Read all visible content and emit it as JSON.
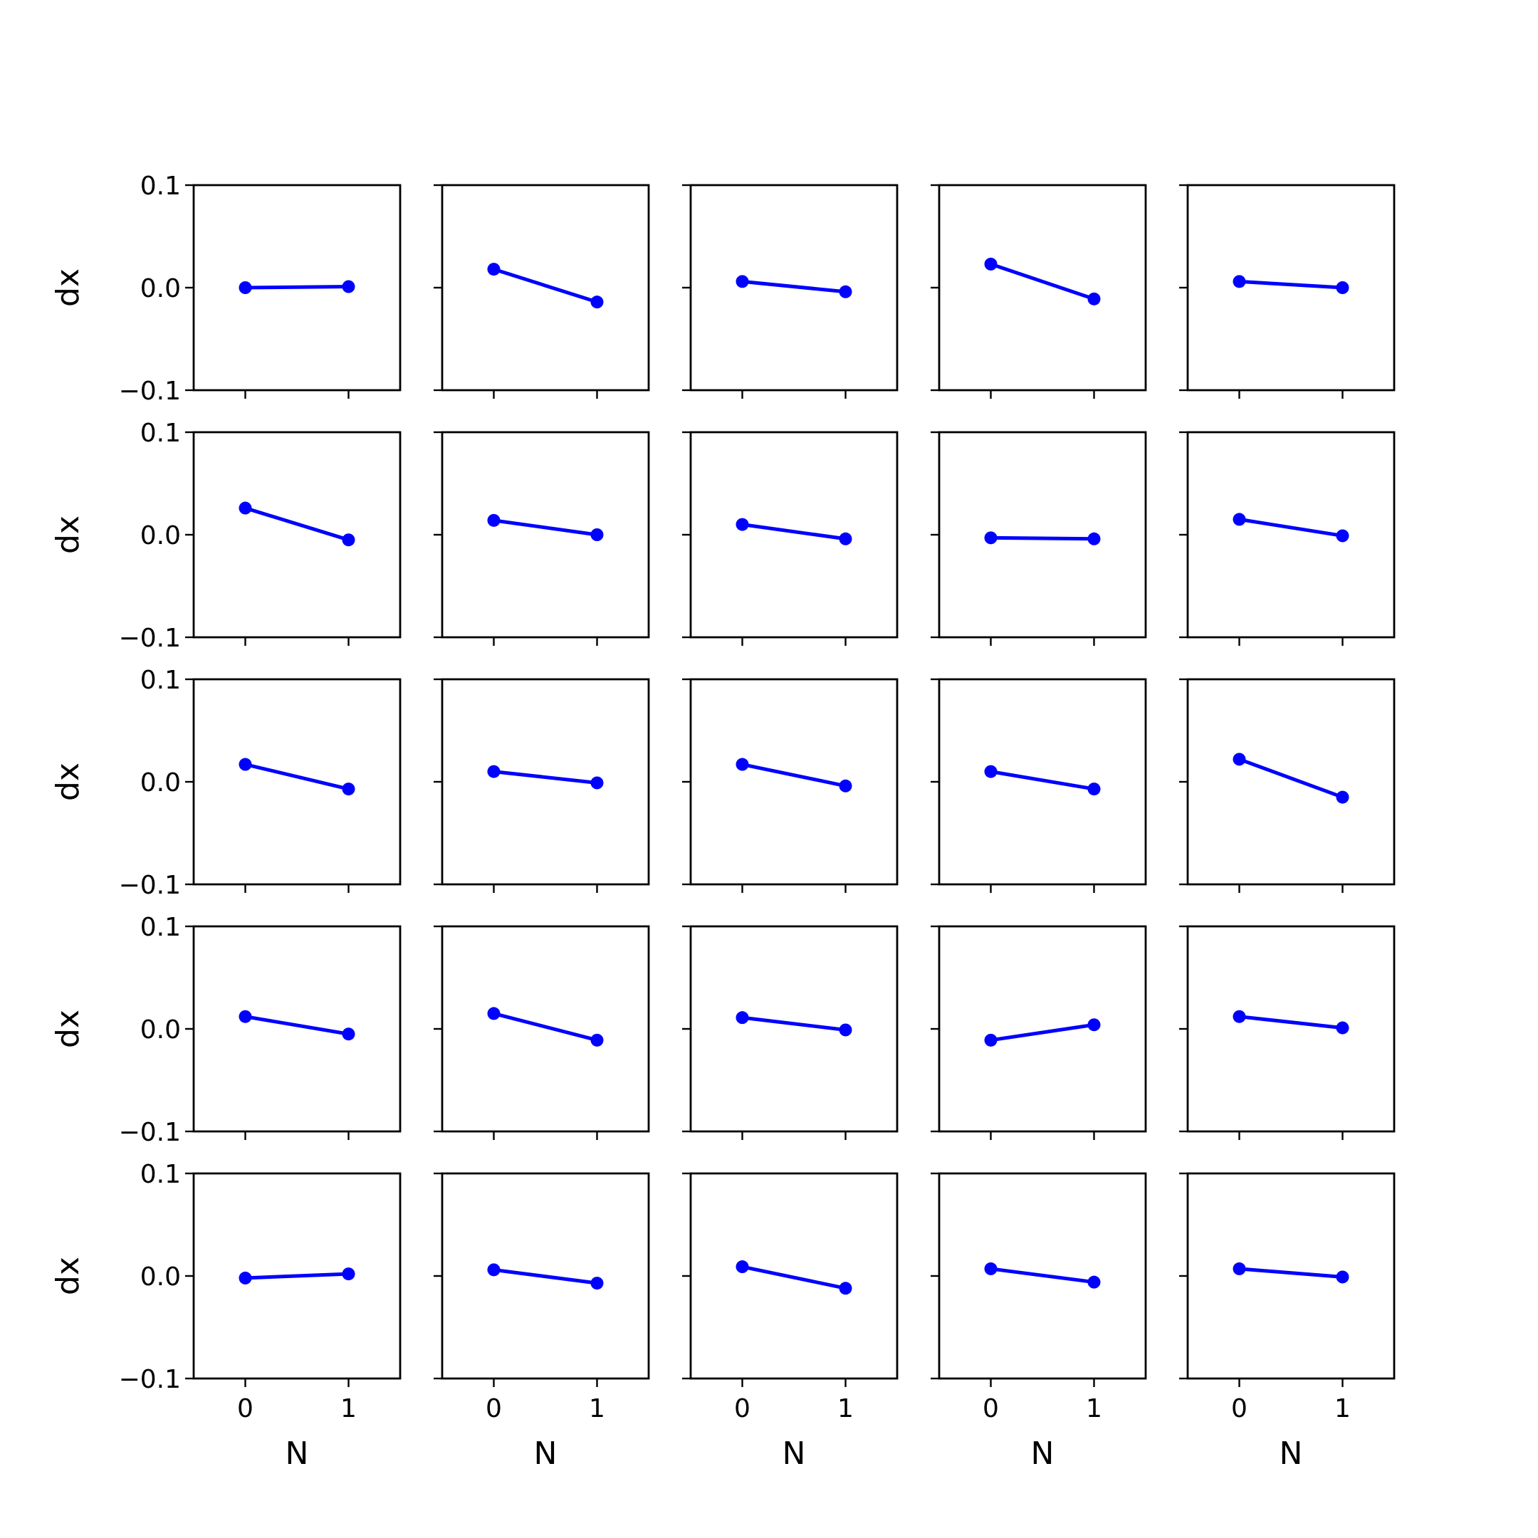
{
  "chart_data": {
    "type": "line",
    "layout": {
      "rows": 5,
      "cols": 5
    },
    "color": "#0000ff",
    "ylabel": "dx",
    "xlabel": "N",
    "xticks": [
      0,
      1
    ],
    "yticks": [
      -0.1,
      0.0,
      0.1
    ],
    "ytick_labels": [
      "−0.1",
      "0.0",
      "0.1"
    ],
    "xlim": [
      -0.5,
      1.5
    ],
    "ylim": [
      -0.1,
      0.1
    ],
    "shared_x": true,
    "shared_y": true,
    "panels": [
      {
        "x": [
          0,
          1
        ],
        "y": [
          0.0,
          0.001
        ]
      },
      {
        "x": [
          0,
          1
        ],
        "y": [
          0.018,
          -0.014
        ]
      },
      {
        "x": [
          0,
          1
        ],
        "y": [
          0.006,
          -0.004
        ]
      },
      {
        "x": [
          0,
          1
        ],
        "y": [
          0.023,
          -0.011
        ]
      },
      {
        "x": [
          0,
          1
        ],
        "y": [
          0.006,
          0.0
        ]
      },
      {
        "x": [
          0,
          1
        ],
        "y": [
          0.026,
          -0.005
        ]
      },
      {
        "x": [
          0,
          1
        ],
        "y": [
          0.014,
          0.0
        ]
      },
      {
        "x": [
          0,
          1
        ],
        "y": [
          0.01,
          -0.004
        ]
      },
      {
        "x": [
          0,
          1
        ],
        "y": [
          -0.003,
          -0.004
        ]
      },
      {
        "x": [
          0,
          1
        ],
        "y": [
          0.015,
          -0.001
        ]
      },
      {
        "x": [
          0,
          1
        ],
        "y": [
          0.017,
          -0.007
        ]
      },
      {
        "x": [
          0,
          1
        ],
        "y": [
          0.01,
          -0.001
        ]
      },
      {
        "x": [
          0,
          1
        ],
        "y": [
          0.017,
          -0.004
        ]
      },
      {
        "x": [
          0,
          1
        ],
        "y": [
          0.01,
          -0.007
        ]
      },
      {
        "x": [
          0,
          1
        ],
        "y": [
          0.022,
          -0.015
        ]
      },
      {
        "x": [
          0,
          1
        ],
        "y": [
          0.012,
          -0.005
        ]
      },
      {
        "x": [
          0,
          1
        ],
        "y": [
          0.015,
          -0.011
        ]
      },
      {
        "x": [
          0,
          1
        ],
        "y": [
          0.011,
          -0.001
        ]
      },
      {
        "x": [
          0,
          1
        ],
        "y": [
          -0.011,
          0.004
        ]
      },
      {
        "x": [
          0,
          1
        ],
        "y": [
          0.012,
          0.001
        ]
      },
      {
        "x": [
          0,
          1
        ],
        "y": [
          -0.002,
          0.002
        ]
      },
      {
        "x": [
          0,
          1
        ],
        "y": [
          0.006,
          -0.007
        ]
      },
      {
        "x": [
          0,
          1
        ],
        "y": [
          0.009,
          -0.012
        ]
      },
      {
        "x": [
          0,
          1
        ],
        "y": [
          0.007,
          -0.006
        ]
      },
      {
        "x": [
          0,
          1
        ],
        "y": [
          0.007,
          -0.001
        ]
      }
    ]
  }
}
